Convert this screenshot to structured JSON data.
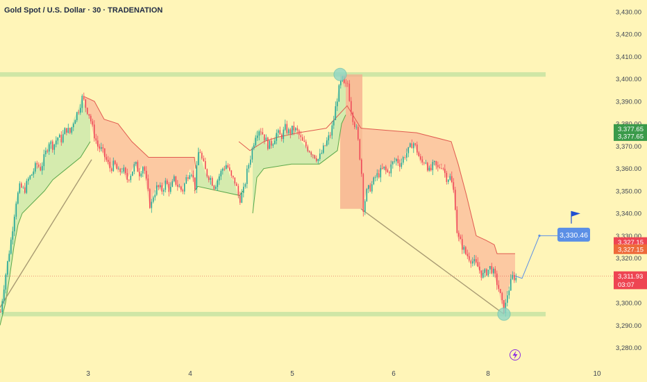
{
  "header": {
    "title": "Gold Spot / U.S. Dollar · 30 · TRADENATION"
  },
  "colors": {
    "background": "#fff5b8",
    "zone": "#cfe6a6",
    "up_candle": "#26a69a",
    "down_candle": "#ef4b5a",
    "green_fill": "#d5ebae",
    "green_line": "#5aa84a",
    "red_fill": "#fcc9a2",
    "red_line": "#e05a4f",
    "drop_box": "#f6a98c",
    "projection": "#5b8fe6",
    "trend_line": "#a89a72",
    "circle": "#8fd6c6",
    "axis_text": "#3f4654",
    "green_label": "#3a9a4a",
    "red_label": "#ee4452",
    "orange_label": "#ee6a3a",
    "blue_label": "#5b8fe6"
  },
  "chart_data": {
    "type": "candlestick",
    "title": "Gold Spot / U.S. Dollar · 30 · TRADENATION",
    "x_ticks": [
      "3",
      "4",
      "5",
      "6",
      "8",
      "10"
    ],
    "y_ticks": [
      "3,280.00",
      "3,290.00",
      "3,300.00",
      "3,310.00",
      "3,320.00",
      "3,330.00",
      "3,340.00",
      "3,350.00",
      "3,360.00",
      "3,370.00",
      "3,380.00",
      "3,390.00",
      "3,400.00",
      "3,410.00",
      "3,420.00",
      "3,430.00"
    ],
    "ylim": [
      3274,
      3434
    ],
    "grid": false,
    "price_path": [
      [
        0,
        3296
      ],
      [
        6,
        3310
      ],
      [
        10,
        3318
      ],
      [
        16,
        3330
      ],
      [
        22,
        3345
      ],
      [
        28,
        3352
      ],
      [
        34,
        3350
      ],
      [
        40,
        3355
      ],
      [
        46,
        3358
      ],
      [
        52,
        3362
      ],
      [
        58,
        3360
      ],
      [
        64,
        3366
      ],
      [
        70,
        3372
      ],
      [
        76,
        3370
      ],
      [
        82,
        3374
      ],
      [
        88,
        3373
      ],
      [
        94,
        3378
      ],
      [
        100,
        3376
      ],
      [
        106,
        3382
      ],
      [
        112,
        3386
      ],
      [
        118,
        3392
      ],
      [
        122,
        3388
      ],
      [
        128,
        3384
      ],
      [
        134,
        3376
      ],
      [
        140,
        3370
      ],
      [
        146,
        3368
      ],
      [
        152,
        3364
      ],
      [
        158,
        3360
      ],
      [
        164,
        3362
      ],
      [
        170,
        3358
      ],
      [
        176,
        3360
      ],
      [
        182,
        3355
      ],
      [
        188,
        3358
      ],
      [
        194,
        3362
      ],
      [
        200,
        3358
      ],
      [
        206,
        3362
      ],
      [
        212,
        3350
      ],
      [
        216,
        3342
      ],
      [
        220,
        3348
      ],
      [
        226,
        3352
      ],
      [
        232,
        3350
      ],
      [
        238,
        3354
      ],
      [
        244,
        3350
      ],
      [
        250,
        3355
      ],
      [
        256,
        3352
      ],
      [
        262,
        3350
      ],
      [
        268,
        3356
      ],
      [
        274,
        3360
      ],
      [
        280,
        3352
      ],
      [
        286,
        3370
      ],
      [
        290,
        3364
      ],
      [
        296,
        3358
      ],
      [
        302,
        3356
      ],
      [
        308,
        3352
      ],
      [
        314,
        3356
      ],
      [
        320,
        3360
      ],
      [
        326,
        3362
      ],
      [
        332,
        3356
      ],
      [
        338,
        3354
      ],
      [
        344,
        3346
      ],
      [
        350,
        3350
      ],
      [
        356,
        3360
      ],
      [
        362,
        3368
      ],
      [
        368,
        3376
      ],
      [
        374,
        3378
      ],
      [
        380,
        3374
      ],
      [
        386,
        3370
      ],
      [
        392,
        3372
      ],
      [
        398,
        3376
      ],
      [
        404,
        3374
      ],
      [
        410,
        3378
      ],
      [
        416,
        3376
      ],
      [
        422,
        3378
      ],
      [
        428,
        3376
      ],
      [
        434,
        3372
      ],
      [
        440,
        3370
      ],
      [
        446,
        3368
      ],
      [
        452,
        3366
      ],
      [
        458,
        3364
      ],
      [
        464,
        3368
      ],
      [
        470,
        3372
      ],
      [
        476,
        3376
      ],
      [
        480,
        3382
      ],
      [
        484,
        3390
      ],
      [
        488,
        3396
      ],
      [
        492,
        3400
      ],
      [
        496,
        3396
      ],
      [
        500,
        3398
      ],
      [
        504,
        3388
      ],
      [
        508,
        3382
      ],
      [
        512,
        3378
      ],
      [
        516,
        3370
      ],
      [
        520,
        3358
      ],
      [
        522,
        3342
      ],
      [
        528,
        3350
      ],
      [
        534,
        3352
      ],
      [
        540,
        3356
      ],
      [
        546,
        3358
      ],
      [
        552,
        3360
      ],
      [
        558,
        3358
      ],
      [
        564,
        3362
      ],
      [
        570,
        3364
      ],
      [
        576,
        3362
      ],
      [
        582,
        3366
      ],
      [
        588,
        3368
      ],
      [
        594,
        3372
      ],
      [
        600,
        3368
      ],
      [
        606,
        3362
      ],
      [
        612,
        3364
      ],
      [
        618,
        3358
      ],
      [
        624,
        3362
      ],
      [
        630,
        3360
      ],
      [
        636,
        3362
      ],
      [
        642,
        3356
      ],
      [
        648,
        3356
      ],
      [
        654,
        3348
      ],
      [
        658,
        3330
      ],
      [
        664,
        3326
      ],
      [
        670,
        3322
      ],
      [
        676,
        3320
      ],
      [
        682,
        3318
      ],
      [
        688,
        3316
      ],
      [
        694,
        3312
      ],
      [
        700,
        3314
      ],
      [
        706,
        3316
      ],
      [
        712,
        3312
      ],
      [
        718,
        3306
      ],
      [
        722,
        3300
      ],
      [
        726,
        3296
      ],
      [
        730,
        3304
      ],
      [
        734,
        3308
      ],
      [
        738,
        3312
      ],
      [
        742,
        3311
      ]
    ],
    "supply_zone": [
      3401,
      3403
    ],
    "demand_zone": [
      3294,
      3296
    ],
    "green_trail": [
      [
        0,
        3290
      ],
      [
        8,
        3300
      ],
      [
        14,
        3312
      ],
      [
        20,
        3325
      ],
      [
        26,
        3335
      ],
      [
        32,
        3340
      ],
      [
        48,
        3345
      ],
      [
        64,
        3350
      ],
      [
        76,
        3355
      ],
      [
        96,
        3360
      ],
      [
        116,
        3365
      ],
      [
        130,
        3372
      ],
      [
        150,
        3360
      ],
      [
        212,
        3358
      ],
      [
        280,
        3350
      ],
      [
        285,
        3352
      ],
      [
        345,
        3348
      ],
      [
        350,
        3350
      ],
      [
        364,
        3340
      ],
      [
        370,
        3356
      ],
      [
        380,
        3360
      ],
      [
        420,
        3362
      ],
      [
        460,
        3362
      ],
      [
        486,
        3368
      ],
      [
        492,
        3380
      ],
      [
        498,
        3384
      ]
    ],
    "red_trail": [
      [
        122,
        3392
      ],
      [
        136,
        3390
      ],
      [
        150,
        3382
      ],
      [
        170,
        3380
      ],
      [
        190,
        3372
      ],
      [
        214,
        3365
      ],
      [
        280,
        3365
      ],
      [
        282,
        3360
      ],
      [
        344,
        3372
      ],
      [
        360,
        3368
      ],
      [
        380,
        3372
      ],
      [
        400,
        3374
      ],
      [
        430,
        3376
      ],
      [
        470,
        3378
      ],
      [
        500,
        3388
      ],
      [
        508,
        3384
      ],
      [
        520,
        3378
      ],
      [
        600,
        3376
      ],
      [
        650,
        3372
      ],
      [
        660,
        3362
      ],
      [
        672,
        3348
      ],
      [
        686,
        3330
      ],
      [
        700,
        3328
      ],
      [
        712,
        3326
      ],
      [
        716,
        3322
      ],
      [
        742,
        3322
      ]
    ],
    "drop_box": {
      "x0": 490,
      "x1": 522,
      "y_top": 3402,
      "y_bottom": 3342
    },
    "trend_lines": [
      [
        [
          0,
          3298
        ],
        [
          132,
          3364
        ]
      ],
      [
        [
          520,
          3342
        ],
        [
          726,
          3295
        ]
      ]
    ],
    "projection": [
      [
        742,
        3312
      ],
      [
        752,
        3311
      ],
      [
        777,
        3330
      ],
      [
        806,
        3330
      ]
    ],
    "circles": [
      [
        490,
        3402
      ],
      [
        726,
        3295
      ]
    ],
    "price_labels": [
      {
        "text": "3,377.65",
        "price": 3377.65,
        "style": "green"
      },
      {
        "text": "3,377.65",
        "price": 3374.5,
        "style": "green"
      },
      {
        "text": "3,327.15",
        "price": 3327.15,
        "style": "red"
      },
      {
        "text": "3,327.15",
        "price": 3324.0,
        "style": "orange"
      },
      {
        "text": "3,311.93",
        "price": 3311.93,
        "style": "red"
      },
      {
        "text": "03:07",
        "price": 3308.3,
        "style": "red"
      }
    ],
    "target_label": {
      "text": "3,330.46",
      "price": 3330.46
    },
    "current_price": 3311.93
  }
}
